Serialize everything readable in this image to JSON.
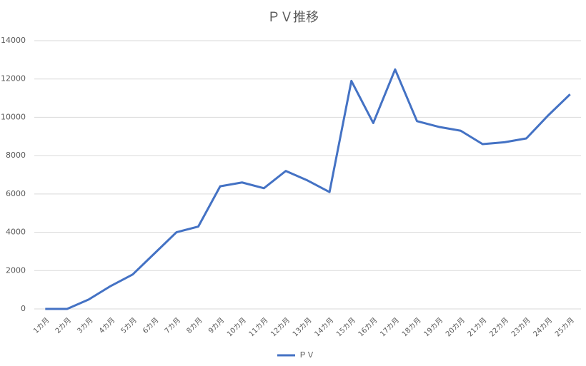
{
  "chart_data": {
    "type": "line",
    "title": "ＰＶ推移",
    "categories": [
      "1カ月",
      "2カ月",
      "3カ月",
      "4カ月",
      "5カ月",
      "6カ月",
      "7カ月",
      "8カ月",
      "9カ月",
      "10カ月",
      "11カ月",
      "12カ月",
      "13カ月",
      "14カ月",
      "15カ月",
      "16カ月",
      "17カ月",
      "18カ月",
      "19カ月",
      "20カ月",
      "21カ月",
      "22カ月",
      "23カ月",
      "24カ月",
      "25カ月"
    ],
    "series": [
      {
        "name": "ＰＶ",
        "color": "#4472c4",
        "values": [
          0,
          0,
          500,
          1200,
          1800,
          2900,
          4000,
          4300,
          6400,
          6600,
          6300,
          7200,
          6700,
          6100,
          11900,
          9700,
          12500,
          9800,
          9500,
          9300,
          8600,
          8700,
          8900,
          10100,
          11200
        ]
      }
    ],
    "ylim": [
      0,
      14000
    ],
    "yticks": [
      0,
      2000,
      4000,
      6000,
      8000,
      10000,
      12000,
      14000
    ],
    "grid": true,
    "legend": "bottom"
  }
}
